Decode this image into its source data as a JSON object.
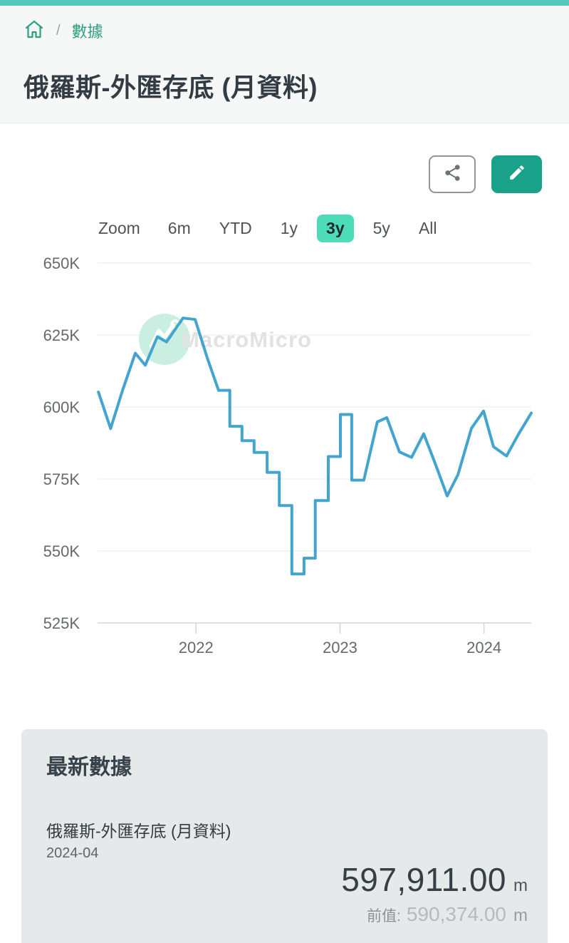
{
  "breadcrumb": {
    "separator": "/",
    "link": "數據",
    "link_color": "#2f9e7d"
  },
  "header": {
    "title": "俄羅斯-外匯存底 (月資料)"
  },
  "toolbar": {
    "share_icon": "share-icon",
    "edit_icon": "pencil-icon",
    "edit_bg": "#19a189"
  },
  "range_selector": {
    "zoom_label": "Zoom",
    "selected": "3y",
    "selected_bg": "#4cdcb8",
    "options": [
      {
        "label": "6m",
        "selected": false
      },
      {
        "label": "YTD",
        "selected": false
      },
      {
        "label": "1y",
        "selected": false
      },
      {
        "label": "3y",
        "selected": true
      },
      {
        "label": "5y",
        "selected": false
      },
      {
        "label": "All",
        "selected": false
      }
    ]
  },
  "chart_data": {
    "type": "line",
    "title": "俄羅斯-外匯存底 (月資料)",
    "line_color": "#43a5cd",
    "grid_color": "#e8e8e8",
    "axis_color": "#d6d6d6",
    "label_color": "#66696c",
    "values_unit": "thousand m",
    "ylim": [
      525,
      650
    ],
    "y_ticks": [
      {
        "label": "650K",
        "v": 650
      },
      {
        "label": "625K",
        "v": 625
      },
      {
        "label": "600K",
        "v": 600
      },
      {
        "label": "575K",
        "v": 575
      },
      {
        "label": "550K",
        "v": 550
      },
      {
        "label": "525K",
        "v": 525
      }
    ],
    "x_ticks": [
      {
        "label": "2022",
        "f": 0.227
      },
      {
        "label": "2023",
        "f": 0.559
      },
      {
        "label": "2024",
        "f": 0.891
      }
    ],
    "watermark": {
      "text": "MacroMicro",
      "logo": "macromicro-logo",
      "circle_color": "#cbeee3",
      "text_color": "#e2e2e2"
    },
    "series": [
      {
        "name": "俄羅斯-外匯存底 (月資料)",
        "points": [
          [
            0.002,
            605.2
          ],
          [
            0.03,
            592.5
          ],
          [
            0.057,
            605.5
          ],
          [
            0.087,
            618.7
          ],
          [
            0.11,
            614.5
          ],
          [
            0.138,
            624.4
          ],
          [
            0.159,
            622.6
          ],
          [
            0.197,
            630.9
          ],
          [
            0.225,
            630.4
          ],
          [
            0.253,
            617.0
          ],
          [
            0.279,
            605.8
          ],
          [
            0.305,
            605.8
          ],
          [
            0.305,
            593.3
          ],
          [
            0.333,
            593.3
          ],
          [
            0.333,
            588.3
          ],
          [
            0.361,
            588.3
          ],
          [
            0.361,
            584.2
          ],
          [
            0.391,
            584.2
          ],
          [
            0.391,
            577.3
          ],
          [
            0.419,
            577.3
          ],
          [
            0.419,
            565.8
          ],
          [
            0.448,
            565.8
          ],
          [
            0.448,
            542.0
          ],
          [
            0.476,
            542.0
          ],
          [
            0.476,
            547.5
          ],
          [
            0.502,
            547.5
          ],
          [
            0.502,
            567.5
          ],
          [
            0.532,
            567.5
          ],
          [
            0.532,
            582.8
          ],
          [
            0.56,
            582.8
          ],
          [
            0.56,
            597.4
          ],
          [
            0.586,
            597.4
          ],
          [
            0.586,
            574.6
          ],
          [
            0.614,
            574.6
          ],
          [
            0.645,
            594.8
          ],
          [
            0.667,
            596.3
          ],
          [
            0.696,
            584.4
          ],
          [
            0.724,
            582.5
          ],
          [
            0.752,
            590.7
          ],
          [
            0.78,
            579.8
          ],
          [
            0.806,
            569.1
          ],
          [
            0.831,
            576.5
          ],
          [
            0.862,
            592.6
          ],
          [
            0.89,
            598.6
          ],
          [
            0.913,
            586.2
          ],
          [
            0.943,
            583.0
          ],
          [
            0.97,
            590.4
          ],
          [
            1.0,
            597.9
          ]
        ],
        "monthly_values": [
          [
            "2021-05",
            605.2
          ],
          [
            "2021-06",
            592.5
          ],
          [
            "2021-07",
            605.5
          ],
          [
            "2021-08",
            618.7
          ],
          [
            "2021-09",
            614.5
          ],
          [
            "2021-10",
            624.4
          ],
          [
            "2021-11",
            622.6
          ],
          [
            "2021-12",
            630.9
          ],
          [
            "2022-01",
            630.4
          ],
          [
            "2022-02",
            617.0
          ],
          [
            "2022-03",
            605.8
          ],
          [
            "2022-04",
            593.3
          ],
          [
            "2022-05",
            588.3
          ],
          [
            "2022-06",
            584.2
          ],
          [
            "2022-07",
            577.3
          ],
          [
            "2022-08",
            565.8
          ],
          [
            "2022-09",
            542.0
          ],
          [
            "2022-10",
            547.5
          ],
          [
            "2022-11",
            567.5
          ],
          [
            "2022-12",
            582.8
          ],
          [
            "2023-01",
            597.4
          ],
          [
            "2023-02",
            574.6
          ],
          [
            "2023-03",
            594.8
          ],
          [
            "2023-04",
            596.3
          ],
          [
            "2023-05",
            584.4
          ],
          [
            "2023-06",
            582.5
          ],
          [
            "2023-07",
            590.7
          ],
          [
            "2023-08",
            579.8
          ],
          [
            "2023-09",
            569.1
          ],
          [
            "2023-10",
            576.5
          ],
          [
            "2023-11",
            592.6
          ],
          [
            "2023-12",
            598.6
          ],
          [
            "2024-01",
            586.2
          ],
          [
            "2024-02",
            583.0
          ],
          [
            "2024-03",
            590.4
          ],
          [
            "2024-04",
            597.9
          ]
        ]
      }
    ]
  },
  "latest_card": {
    "heading": "最新數據",
    "series_name": "俄羅斯-外匯存底 (月資料)",
    "period": "2024-04",
    "latest_value": "597,911.00",
    "unit": "m",
    "prev_label": "前值:",
    "prev_value": "590,374.00",
    "prev_unit": "m"
  }
}
